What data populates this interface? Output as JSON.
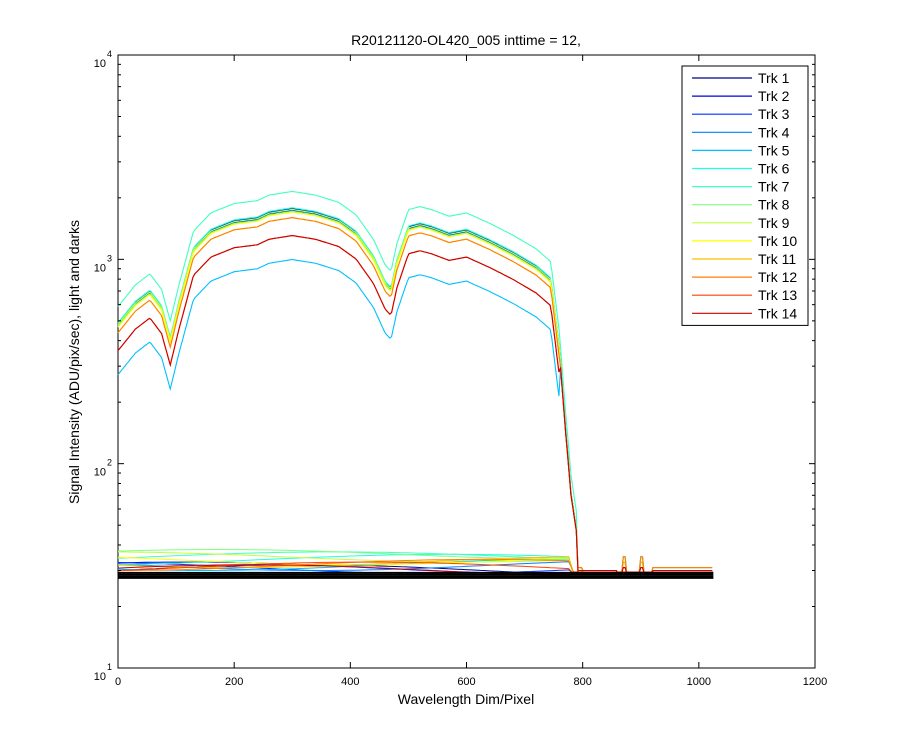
{
  "chart_data": {
    "type": "line",
    "title": "R20121120-OL420_005 inttime = 12,",
    "xlabel": "Wavelength Dim/Pixel",
    "ylabel": "Signal Intensity (ADU/pix/sec), light and darks",
    "xlim": [
      0,
      1200
    ],
    "ylim": [
      10,
      10000
    ],
    "yscale": "log",
    "xticks": [
      "0",
      "200",
      "400",
      "600",
      "800",
      "1000",
      "1200"
    ],
    "yticks": [
      {
        "base": "10",
        "exp": "1"
      },
      {
        "base": "10",
        "exp": "2"
      },
      {
        "base": "10",
        "exp": "3"
      },
      {
        "base": "10",
        "exp": "4"
      }
    ],
    "legend_position": "top-right",
    "grid": false,
    "series": [
      {
        "name": "Trk 1",
        "color": "#00008f",
        "scale": 1.0,
        "dark": 30
      },
      {
        "name": "Trk 2",
        "color": "#0000dd",
        "scale": 1.03,
        "dark": 31
      },
      {
        "name": "Trk 3",
        "color": "#0030ff",
        "scale": 1.01,
        "dark": 31
      },
      {
        "name": "Trk 4",
        "color": "#0080ff",
        "scale": 1.02,
        "dark": 32
      },
      {
        "name": "Trk 5",
        "color": "#00bfff",
        "scale": 0.58,
        "dark": 32
      },
      {
        "name": "Trk 6",
        "color": "#20ffdf",
        "scale": 1.04,
        "dark": 34
      },
      {
        "name": "Trk 7",
        "color": "#40ffbf",
        "scale": 1.25,
        "dark": 35
      },
      {
        "name": "Trk 8",
        "color": "#80ff80",
        "scale": 1.0,
        "dark": 36
      },
      {
        "name": "Trk 9",
        "color": "#bfff40",
        "scale": 1.02,
        "dark": 35
      },
      {
        "name": "Trk 10",
        "color": "#ffff00",
        "scale": 0.99,
        "dark": 34
      },
      {
        "name": "Trk 11",
        "color": "#ffbf00",
        "scale": 0.93,
        "dark": 33
      },
      {
        "name": "Trk 12",
        "color": "#ff8000",
        "scale": 0.93,
        "dark": 32
      },
      {
        "name": "Trk 13",
        "color": "#ff4000",
        "scale": 0.76,
        "dark": 31
      },
      {
        "name": "Trk 14",
        "color": "#cc0000",
        "scale": 0.76,
        "dark": 30
      }
    ],
    "reference_profile": {
      "pixel": [
        0,
        30,
        55,
        75,
        90,
        105,
        130,
        160,
        200,
        240,
        260,
        300,
        340,
        380,
        410,
        440,
        460,
        470,
        480,
        500,
        520,
        540,
        570,
        600,
        640,
        680,
        720,
        745,
        750,
        760,
        770,
        780,
        790,
        800,
        820
      ],
      "intensity": [
        470,
        600,
        680,
        570,
        400,
        600,
        1100,
        1350,
        1500,
        1550,
        1650,
        1720,
        1650,
        1520,
        1320,
        1000,
        750,
        700,
        950,
        1400,
        1450,
        1400,
        1300,
        1350,
        1200,
        1050,
        900,
        780,
        600,
        350,
        150,
        70,
        45,
        38,
        32
      ]
    },
    "darks": {
      "pixel_max": 1025,
      "color": "#000000",
      "baseline": 28
    }
  }
}
